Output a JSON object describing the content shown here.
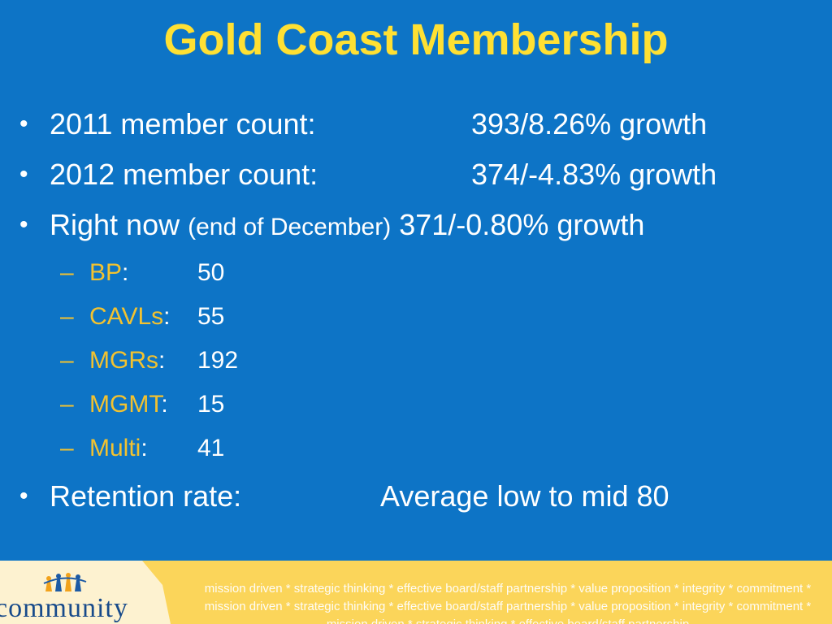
{
  "title": "Gold Coast Membership",
  "bullets": [
    {
      "label": "2011 member count:",
      "value": "393/8.26% growth"
    },
    {
      "label": "2012 member count:",
      "value": "374/-4.83% growth"
    },
    {
      "label_main": "Right now ",
      "label_paren": "(end of December)",
      "value": " 371/-0.80% growth"
    }
  ],
  "breakdown": [
    {
      "label": "BP",
      "value": "50"
    },
    {
      "label": "CAVLs",
      "value": "55"
    },
    {
      "label": "MGRs",
      "value": "192"
    },
    {
      "label": "MGMT",
      "value": "15"
    },
    {
      "label": "Multi",
      "value": "41"
    }
  ],
  "retention": {
    "label": "Retention rate:",
    "value": "Average low to mid 80"
  },
  "footer": {
    "logo_text": "community",
    "tagline": "mission driven * strategic thinking * effective board/staff partnership * value proposition * integrity * commitment * mission driven * strategic thinking * effective board/staff partnership * value proposition * integrity * commitment * mission driven * strategic thinking * effective board/staff partnership"
  },
  "colors": {
    "background": "#0d74c6",
    "title": "#ffe033",
    "sub_label": "#f2c230",
    "footer": "#fbd55a"
  }
}
